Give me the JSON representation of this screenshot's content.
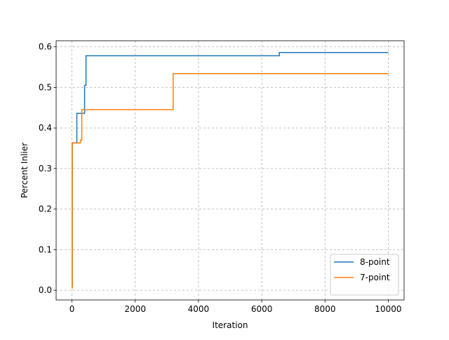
{
  "chart_data": {
    "type": "line",
    "xlabel": "Iteration",
    "ylabel": "Percent Inlier",
    "series": [
      {
        "name": "8-point",
        "color": "#1f77b4",
        "x": [
          0,
          10,
          10,
          155,
          155,
          400,
          400,
          444,
          444,
          6555,
          6555,
          10000
        ],
        "values": [
          0.01,
          0.01,
          0.363,
          0.363,
          0.436,
          0.436,
          0.505,
          0.505,
          0.578,
          0.578,
          0.586,
          0.586
        ]
      },
      {
        "name": "7-point",
        "color": "#ff7f0e",
        "x": [
          0,
          10,
          10,
          267,
          267,
          311,
          311,
          3200,
          3200,
          10000
        ],
        "values": [
          0.005,
          0.005,
          0.363,
          0.363,
          0.37,
          0.37,
          0.445,
          0.445,
          0.534,
          0.534
        ]
      }
    ],
    "xlim": [
      -500,
      10500
    ],
    "xticks": [
      0,
      2000,
      4000,
      6000,
      8000,
      10000
    ],
    "ylim": [
      -0.024,
      0.615
    ],
    "yticks": [
      {
        "value": 0,
        "label": "0.0"
      },
      0.1,
      0.2,
      0.3,
      0.4,
      0.5,
      0.6
    ],
    "grid": true,
    "legend": "lower right"
  }
}
